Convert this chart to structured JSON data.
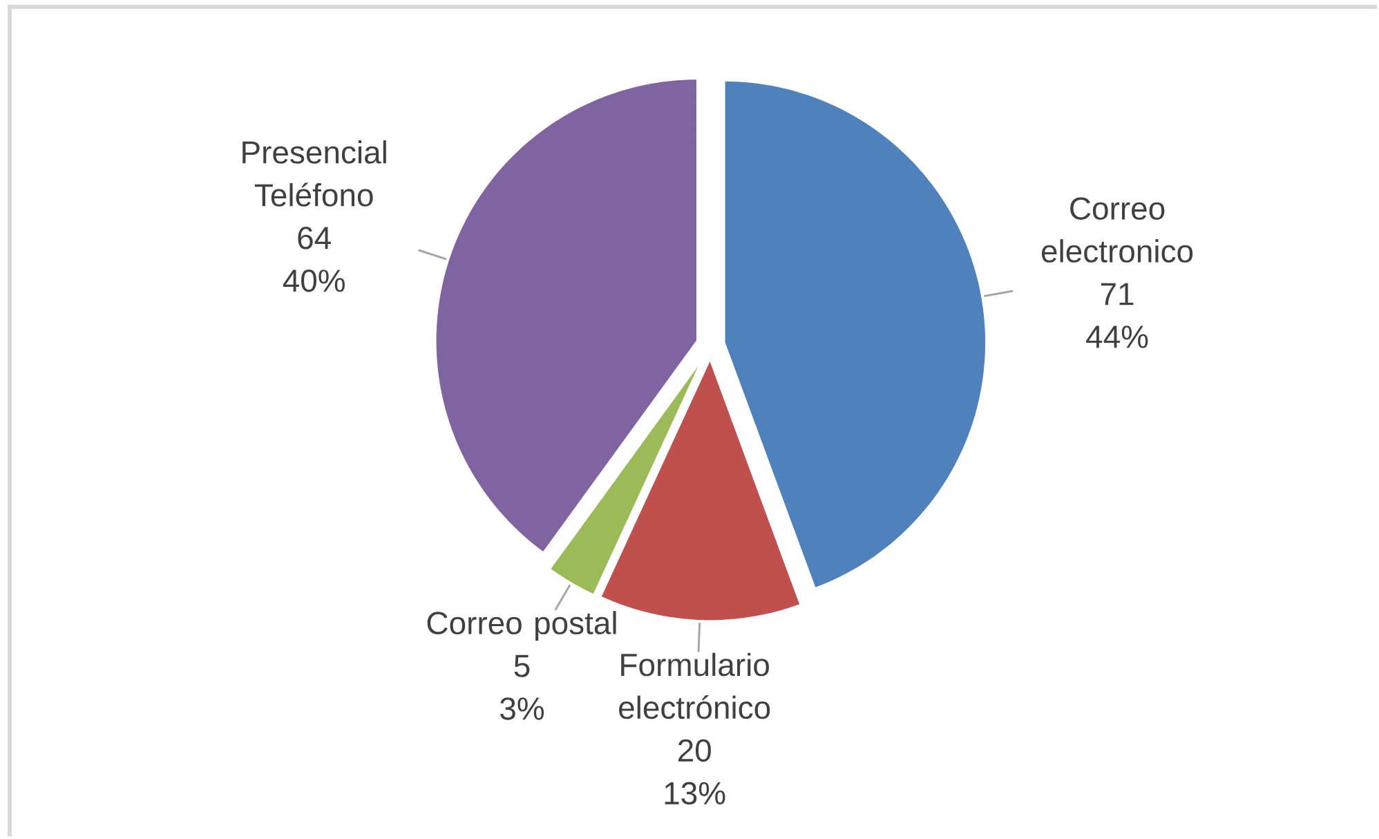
{
  "chart_data": {
    "type": "pie",
    "categories": [
      "Correo electronico",
      "Formulario electrónico",
      "Correo postal",
      "Presencial Teléfono"
    ],
    "values": [
      71,
      20,
      5,
      64
    ],
    "colors": [
      "#4f81bd",
      "#c0504d",
      "#9bbb59",
      "#8064a2"
    ],
    "value_labels": [
      "71 44%",
      "20 13%",
      "5 3%",
      "64 40%"
    ]
  }
}
